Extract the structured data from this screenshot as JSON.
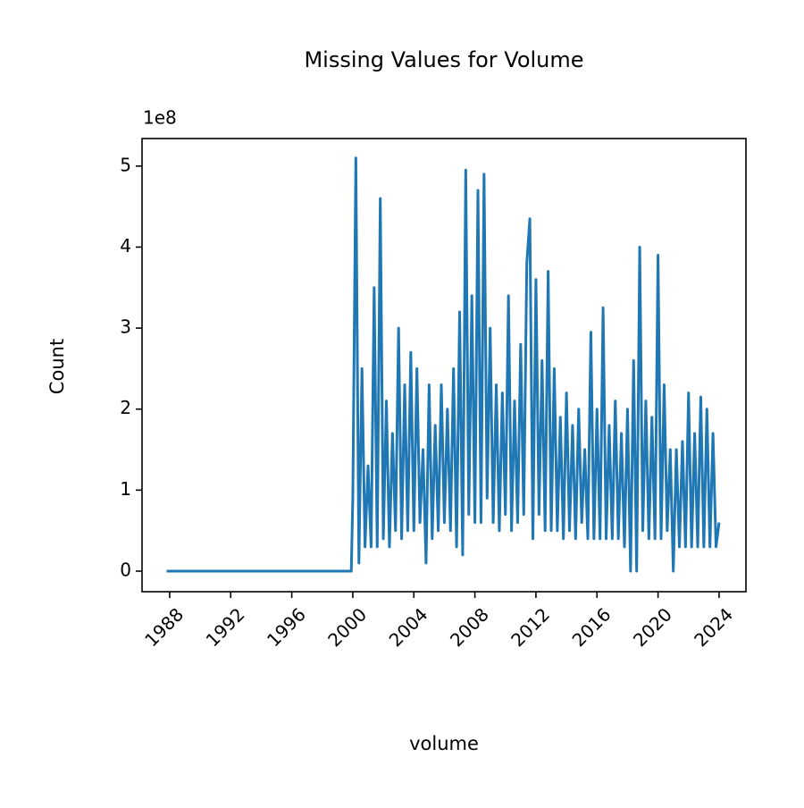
{
  "chart_data": {
    "type": "line",
    "title": "Missing Values for Volume",
    "x_label": "volume",
    "y_label": "Count",
    "y_offset_label": "1e8",
    "x": [
      1987.8,
      1999.9,
      2000.0,
      2000.2,
      2000.4,
      2000.6,
      2000.8,
      2001.0,
      2001.2,
      2001.4,
      2001.6,
      2001.8,
      2002.0,
      2002.2,
      2002.4,
      2002.6,
      2002.8,
      2003.0,
      2003.2,
      2003.4,
      2003.6,
      2003.8,
      2004.0,
      2004.2,
      2004.4,
      2004.6,
      2004.8,
      2005.0,
      2005.2,
      2005.4,
      2005.6,
      2005.8,
      2006.0,
      2006.2,
      2006.4,
      2006.6,
      2006.8,
      2007.0,
      2007.2,
      2007.4,
      2007.6,
      2007.8,
      2008.0,
      2008.2,
      2008.4,
      2008.6,
      2008.8,
      2009.0,
      2009.2,
      2009.4,
      2009.6,
      2009.8,
      2010.0,
      2010.2,
      2010.4,
      2010.6,
      2010.8,
      2011.0,
      2011.2,
      2011.4,
      2011.6,
      2011.8,
      2012.0,
      2012.2,
      2012.4,
      2012.6,
      2012.8,
      2013.0,
      2013.2,
      2013.4,
      2013.6,
      2013.8,
      2014.0,
      2014.2,
      2014.4,
      2014.6,
      2014.8,
      2015.0,
      2015.2,
      2015.4,
      2015.6,
      2015.8,
      2016.0,
      2016.2,
      2016.4,
      2016.6,
      2016.8,
      2017.0,
      2017.2,
      2017.4,
      2017.6,
      2017.8,
      2018.0,
      2018.2,
      2018.4,
      2018.6,
      2018.8,
      2019.0,
      2019.2,
      2019.4,
      2019.6,
      2019.8,
      2020.0,
      2020.2,
      2020.4,
      2020.6,
      2020.8,
      2021.0,
      2021.2,
      2021.4,
      2021.6,
      2021.8,
      2022.0,
      2022.2,
      2022.4,
      2022.6,
      2022.8,
      2023.0,
      2023.2,
      2023.4,
      2023.6,
      2023.8,
      2024.0
    ],
    "series": [
      {
        "color": "#1f77b4",
        "values": [
          0,
          0,
          0.9,
          5.1,
          0.1,
          2.5,
          0.3,
          1.3,
          0.3,
          3.5,
          0.3,
          4.6,
          0.4,
          2.1,
          0.3,
          1.7,
          0.5,
          3.0,
          0.4,
          2.3,
          0.5,
          2.7,
          0.5,
          2.5,
          0.6,
          1.5,
          0.1,
          2.3,
          0.4,
          1.8,
          0.5,
          2.3,
          0.6,
          2.0,
          0.5,
          2.5,
          0.3,
          3.2,
          0.2,
          4.95,
          0.7,
          3.4,
          0.6,
          4.7,
          0.6,
          4.9,
          0.9,
          3.0,
          0.6,
          2.3,
          0.5,
          2.2,
          0.7,
          3.4,
          0.5,
          2.1,
          0.6,
          2.8,
          0.7,
          3.8,
          4.35,
          0.4,
          3.6,
          0.7,
          2.6,
          0.5,
          3.7,
          0.5,
          2.5,
          0.5,
          1.9,
          0.4,
          2.2,
          0.5,
          1.8,
          0.4,
          2.0,
          0.6,
          1.5,
          0.4,
          2.95,
          0.4,
          2.0,
          0.4,
          3.25,
          0.4,
          1.8,
          0.4,
          2.1,
          0.4,
          1.7,
          0.3,
          2.0,
          0.0,
          2.6,
          0.0,
          4.0,
          0.5,
          2.1,
          0.4,
          1.9,
          0.4,
          3.9,
          0.4,
          2.3,
          0.5,
          1.5,
          0.0,
          1.5,
          0.3,
          1.6,
          0.3,
          2.2,
          0.3,
          1.7,
          0.3,
          2.15,
          0.3,
          2.0,
          0.3,
          1.7,
          0.3,
          0.6
        ]
      }
    ],
    "xlim": [
      1986.19,
      2025.76
    ],
    "xticks": [
      1988,
      1992,
      1996,
      2000,
      2004,
      2008,
      2012,
      2016,
      2020,
      2024
    ],
    "ylim": [
      -0.254,
      5.34
    ],
    "yticks": [
      0,
      1,
      2,
      3,
      4,
      5
    ],
    "grid": false
  }
}
